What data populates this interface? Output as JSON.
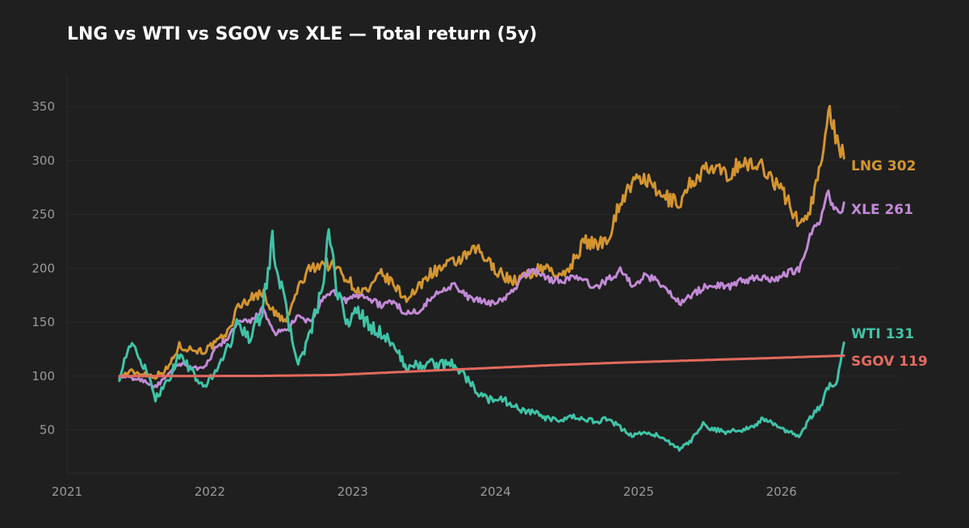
{
  "chart_data": {
    "type": "line",
    "title": "LNG vs WTI vs SGOV vs XLE — Total return (5y)",
    "xlabel": "",
    "ylabel": "",
    "x_ticks": [
      "2021",
      "2022",
      "2023",
      "2024",
      "2025",
      "2026"
    ],
    "y_ticks": [
      50,
      100,
      150,
      200,
      250,
      300,
      350
    ],
    "xlim": [
      "2021-01-01",
      "2026-11-01"
    ],
    "ylim": [
      10,
      380
    ],
    "grid": true,
    "legend": "end-of-line labels",
    "series": [
      {
        "name": "LNG",
        "end_label": "LNG  302",
        "color": "#d4952f",
        "points": [
          [
            "2021-05-15",
            100
          ],
          [
            "2021-06-15",
            104
          ],
          [
            "2021-07-15",
            102
          ],
          [
            "2021-08-15",
            100
          ],
          [
            "2021-09-15",
            107
          ],
          [
            "2021-10-15",
            128
          ],
          [
            "2021-11-15",
            125
          ],
          [
            "2021-12-15",
            123
          ],
          [
            "2022-01-15",
            130
          ],
          [
            "2022-02-15",
            140
          ],
          [
            "2022-03-15",
            165
          ],
          [
            "2022-04-15",
            172
          ],
          [
            "2022-05-15",
            178
          ],
          [
            "2022-06-15",
            158
          ],
          [
            "2022-07-15",
            150
          ],
          [
            "2022-08-15",
            182
          ],
          [
            "2022-09-15",
            200
          ],
          [
            "2022-10-15",
            205
          ],
          [
            "2022-11-15",
            202
          ],
          [
            "2022-12-15",
            192
          ],
          [
            "2023-01-15",
            178
          ],
          [
            "2023-02-15",
            180
          ],
          [
            "2023-03-15",
            195
          ],
          [
            "2023-04-15",
            185
          ],
          [
            "2023-05-15",
            172
          ],
          [
            "2023-06-15",
            180
          ],
          [
            "2023-07-15",
            195
          ],
          [
            "2023-08-15",
            200
          ],
          [
            "2023-09-15",
            205
          ],
          [
            "2023-10-15",
            210
          ],
          [
            "2023-11-15",
            218
          ],
          [
            "2023-12-15",
            205
          ],
          [
            "2024-01-15",
            195
          ],
          [
            "2024-02-15",
            188
          ],
          [
            "2024-03-15",
            192
          ],
          [
            "2024-04-15",
            198
          ],
          [
            "2024-05-15",
            202
          ],
          [
            "2024-06-15",
            190
          ],
          [
            "2024-07-15",
            205
          ],
          [
            "2024-08-15",
            225
          ],
          [
            "2024-09-15",
            222
          ],
          [
            "2024-10-15",
            228
          ],
          [
            "2024-11-15",
            262
          ],
          [
            "2024-12-15",
            278
          ],
          [
            "2025-01-15",
            285
          ],
          [
            "2025-02-15",
            270
          ],
          [
            "2025-03-15",
            265
          ],
          [
            "2025-04-15",
            260
          ],
          [
            "2025-05-15",
            280
          ],
          [
            "2025-06-15",
            290
          ],
          [
            "2025-07-15",
            292
          ],
          [
            "2025-08-15",
            285
          ],
          [
            "2025-09-15",
            298
          ],
          [
            "2025-10-15",
            295
          ],
          [
            "2025-11-15",
            295
          ],
          [
            "2025-12-15",
            280
          ],
          [
            "2026-01-15",
            265
          ],
          [
            "2026-02-15",
            240
          ],
          [
            "2026-03-15",
            255
          ],
          [
            "2026-04-15",
            300
          ],
          [
            "2026-05-01",
            355
          ],
          [
            "2026-05-15",
            330
          ],
          [
            "2026-06-01",
            310
          ],
          [
            "2026-06-10",
            302
          ]
        ]
      },
      {
        "name": "XLE",
        "end_label": "XLE  261",
        "color": "#c28ad6",
        "points": [
          [
            "2021-05-15",
            100
          ],
          [
            "2021-06-15",
            98
          ],
          [
            "2021-07-15",
            96
          ],
          [
            "2021-08-15",
            90
          ],
          [
            "2021-09-15",
            100
          ],
          [
            "2021-10-15",
            112
          ],
          [
            "2021-11-15",
            108
          ],
          [
            "2021-12-15",
            106
          ],
          [
            "2022-01-15",
            125
          ],
          [
            "2022-02-15",
            135
          ],
          [
            "2022-03-15",
            150
          ],
          [
            "2022-04-15",
            150
          ],
          [
            "2022-05-15",
            162
          ],
          [
            "2022-06-15",
            140
          ],
          [
            "2022-07-15",
            142
          ],
          [
            "2022-08-15",
            155
          ],
          [
            "2022-09-15",
            150
          ],
          [
            "2022-10-15",
            170
          ],
          [
            "2022-11-15",
            178
          ],
          [
            "2022-12-15",
            170
          ],
          [
            "2023-01-15",
            175
          ],
          [
            "2023-02-15",
            172
          ],
          [
            "2023-03-15",
            165
          ],
          [
            "2023-04-15",
            170
          ],
          [
            "2023-05-15",
            158
          ],
          [
            "2023-06-15",
            160
          ],
          [
            "2023-07-15",
            170
          ],
          [
            "2023-08-15",
            180
          ],
          [
            "2023-09-15",
            185
          ],
          [
            "2023-10-15",
            175
          ],
          [
            "2023-11-15",
            170
          ],
          [
            "2023-12-15",
            168
          ],
          [
            "2024-01-15",
            170
          ],
          [
            "2024-02-15",
            178
          ],
          [
            "2024-03-15",
            195
          ],
          [
            "2024-04-15",
            198
          ],
          [
            "2024-05-15",
            190
          ],
          [
            "2024-06-15",
            188
          ],
          [
            "2024-07-15",
            192
          ],
          [
            "2024-08-15",
            188
          ],
          [
            "2024-09-15",
            182
          ],
          [
            "2024-10-15",
            190
          ],
          [
            "2024-11-15",
            198
          ],
          [
            "2024-12-15",
            185
          ],
          [
            "2025-01-15",
            192
          ],
          [
            "2025-02-15",
            190
          ],
          [
            "2025-03-15",
            180
          ],
          [
            "2025-04-15",
            168
          ],
          [
            "2025-05-15",
            175
          ],
          [
            "2025-06-15",
            182
          ],
          [
            "2025-07-15",
            185
          ],
          [
            "2025-08-15",
            182
          ],
          [
            "2025-09-15",
            188
          ],
          [
            "2025-10-15",
            190
          ],
          [
            "2025-11-15",
            192
          ],
          [
            "2025-12-15",
            190
          ],
          [
            "2026-01-15",
            195
          ],
          [
            "2026-02-15",
            200
          ],
          [
            "2026-03-15",
            230
          ],
          [
            "2026-04-15",
            250
          ],
          [
            "2026-05-01",
            270
          ],
          [
            "2026-05-15",
            255
          ],
          [
            "2026-06-01",
            250
          ],
          [
            "2026-06-10",
            261
          ]
        ]
      },
      {
        "name": "WTI",
        "end_label": "WTI  131",
        "color": "#3fc4a6",
        "points": [
          [
            "2021-05-15",
            100
          ],
          [
            "2021-06-01",
            120
          ],
          [
            "2021-06-20",
            128
          ],
          [
            "2021-07-15",
            110
          ],
          [
            "2021-08-15",
            80
          ],
          [
            "2021-09-15",
            95
          ],
          [
            "2021-10-15",
            120
          ],
          [
            "2021-11-15",
            105
          ],
          [
            "2021-12-15",
            88
          ],
          [
            "2022-01-15",
            105
          ],
          [
            "2022-02-15",
            125
          ],
          [
            "2022-03-15",
            150
          ],
          [
            "2022-04-15",
            135
          ],
          [
            "2022-05-15",
            160
          ],
          [
            "2022-06-10",
            225
          ],
          [
            "2022-07-15",
            160
          ],
          [
            "2022-08-15",
            110
          ],
          [
            "2022-09-15",
            140
          ],
          [
            "2022-10-15",
            180
          ],
          [
            "2022-11-01",
            230
          ],
          [
            "2022-11-20",
            185
          ],
          [
            "2022-12-15",
            150
          ],
          [
            "2023-01-15",
            160
          ],
          [
            "2023-02-15",
            145
          ],
          [
            "2023-03-15",
            140
          ],
          [
            "2023-04-15",
            130
          ],
          [
            "2023-05-15",
            108
          ],
          [
            "2023-06-15",
            110
          ],
          [
            "2023-07-15",
            112
          ],
          [
            "2023-08-15",
            110
          ],
          [
            "2023-09-15",
            112
          ],
          [
            "2023-10-15",
            100
          ],
          [
            "2023-11-15",
            85
          ],
          [
            "2023-12-15",
            78
          ],
          [
            "2024-01-15",
            80
          ],
          [
            "2024-02-15",
            72
          ],
          [
            "2024-03-15",
            68
          ],
          [
            "2024-04-15",
            65
          ],
          [
            "2024-05-15",
            60
          ],
          [
            "2024-06-15",
            58
          ],
          [
            "2024-07-15",
            62
          ],
          [
            "2024-08-15",
            60
          ],
          [
            "2024-09-15",
            58
          ],
          [
            "2024-10-15",
            60
          ],
          [
            "2024-11-15",
            52
          ],
          [
            "2024-12-15",
            45
          ],
          [
            "2025-01-15",
            48
          ],
          [
            "2025-02-15",
            45
          ],
          [
            "2025-03-15",
            40
          ],
          [
            "2025-04-15",
            32
          ],
          [
            "2025-05-15",
            40
          ],
          [
            "2025-06-15",
            55
          ],
          [
            "2025-07-15",
            50
          ],
          [
            "2025-08-15",
            48
          ],
          [
            "2025-09-15",
            50
          ],
          [
            "2025-10-15",
            52
          ],
          [
            "2025-11-15",
            60
          ],
          [
            "2025-12-15",
            55
          ],
          [
            "2026-01-15",
            48
          ],
          [
            "2026-02-15",
            45
          ],
          [
            "2026-03-15",
            60
          ],
          [
            "2026-04-15",
            75
          ],
          [
            "2026-05-01",
            90
          ],
          [
            "2026-05-20",
            95
          ],
          [
            "2026-06-01",
            110
          ],
          [
            "2026-06-10",
            131
          ]
        ]
      },
      {
        "name": "SGOV",
        "end_label": "SGOV  119",
        "color": "#e36b5e",
        "points": [
          [
            "2021-05-15",
            100
          ],
          [
            "2022-05-15",
            100.2
          ],
          [
            "2022-11-15",
            101
          ],
          [
            "2023-05-15",
            104
          ],
          [
            "2023-11-15",
            107
          ],
          [
            "2024-05-15",
            110
          ],
          [
            "2024-11-15",
            112.5
          ],
          [
            "2025-05-15",
            114.5
          ],
          [
            "2025-11-15",
            116.5
          ],
          [
            "2026-06-10",
            119
          ]
        ]
      }
    ]
  }
}
